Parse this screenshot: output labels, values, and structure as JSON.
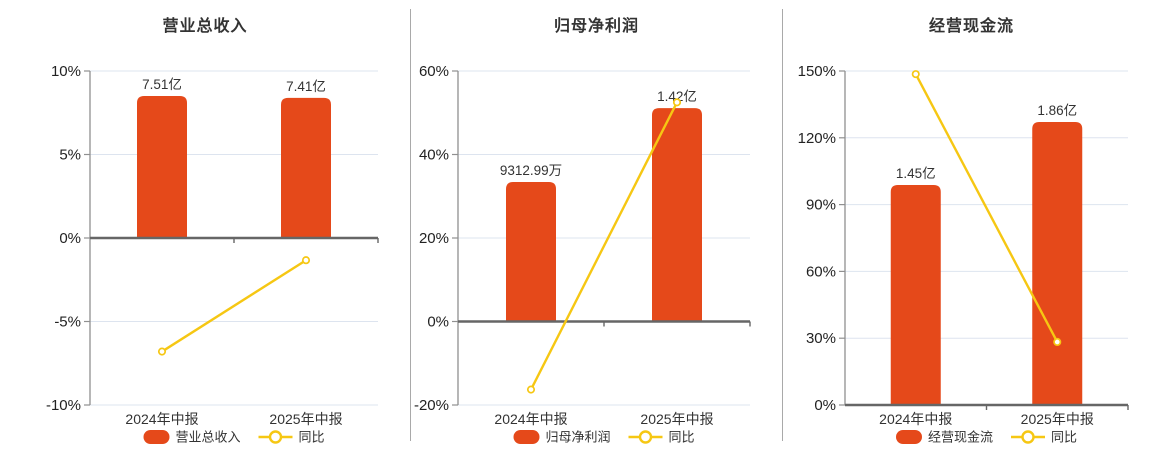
{
  "colors": {
    "bar": "#e5491a",
    "line": "#f6c713",
    "marker_fill": "#ffffff",
    "grid_line": "#dde4ef",
    "zero_axis": "#666666",
    "y_axis": "#909090",
    "tick_text": "#222222",
    "label_text": "#333333",
    "separator": "#a9a9a9",
    "background": "#ffffff"
  },
  "chart_data": [
    {
      "type": "bar+line",
      "title": "营业总收入",
      "categories": [
        "2024年中报",
        "2025年中报"
      ],
      "bar_series": {
        "name": "营业总收入",
        "value_labels": [
          "7.51亿",
          "7.41亿"
        ],
        "plotted_pct": [
          8.5,
          8.39
        ]
      },
      "line_series": {
        "name": "同比",
        "values_pct": [
          -6.8,
          -1.33
        ]
      },
      "y_axis": {
        "min": -10,
        "max": 10,
        "step": 5,
        "tick_labels": [
          "10%",
          "5%",
          "0%",
          "-5%",
          "-10%"
        ],
        "grid": true
      },
      "legend": {
        "items": [
          "营业总收入",
          "同比"
        ],
        "position": "bottom"
      }
    },
    {
      "type": "bar+line",
      "title": "归母净利润",
      "categories": [
        "2024年中报",
        "2025年中报"
      ],
      "bar_series": {
        "name": "归母净利润",
        "value_labels": [
          "9312.99万",
          "1.42亿"
        ],
        "plotted_pct": [
          33.4,
          51.1
        ]
      },
      "line_series": {
        "name": "同比",
        "values_pct": [
          -16.3,
          52.5
        ]
      },
      "y_axis": {
        "min": -20,
        "max": 60,
        "step": 20,
        "tick_labels": [
          "60%",
          "40%",
          "20%",
          "0%",
          "-20%"
        ],
        "grid": true
      },
      "legend": {
        "items": [
          "归母净利润",
          "同比"
        ],
        "position": "bottom"
      }
    },
    {
      "type": "bar+line",
      "title": "经营现金流",
      "categories": [
        "2024年中报",
        "2025年中报"
      ],
      "bar_series": {
        "name": "经营现金流",
        "value_labels": [
          "1.45亿",
          "1.86亿"
        ],
        "plotted_pct": [
          98.8,
          127.1
        ]
      },
      "line_series": {
        "name": "同比",
        "values_pct": [
          148.6,
          28.3
        ]
      },
      "y_axis": {
        "min": 0,
        "max": 150,
        "step": 30,
        "tick_labels": [
          "150%",
          "120%",
          "90%",
          "60%",
          "30%",
          "0%"
        ],
        "grid": true
      },
      "legend": {
        "items": [
          "经营现金流",
          "同比"
        ],
        "position": "bottom"
      }
    }
  ]
}
